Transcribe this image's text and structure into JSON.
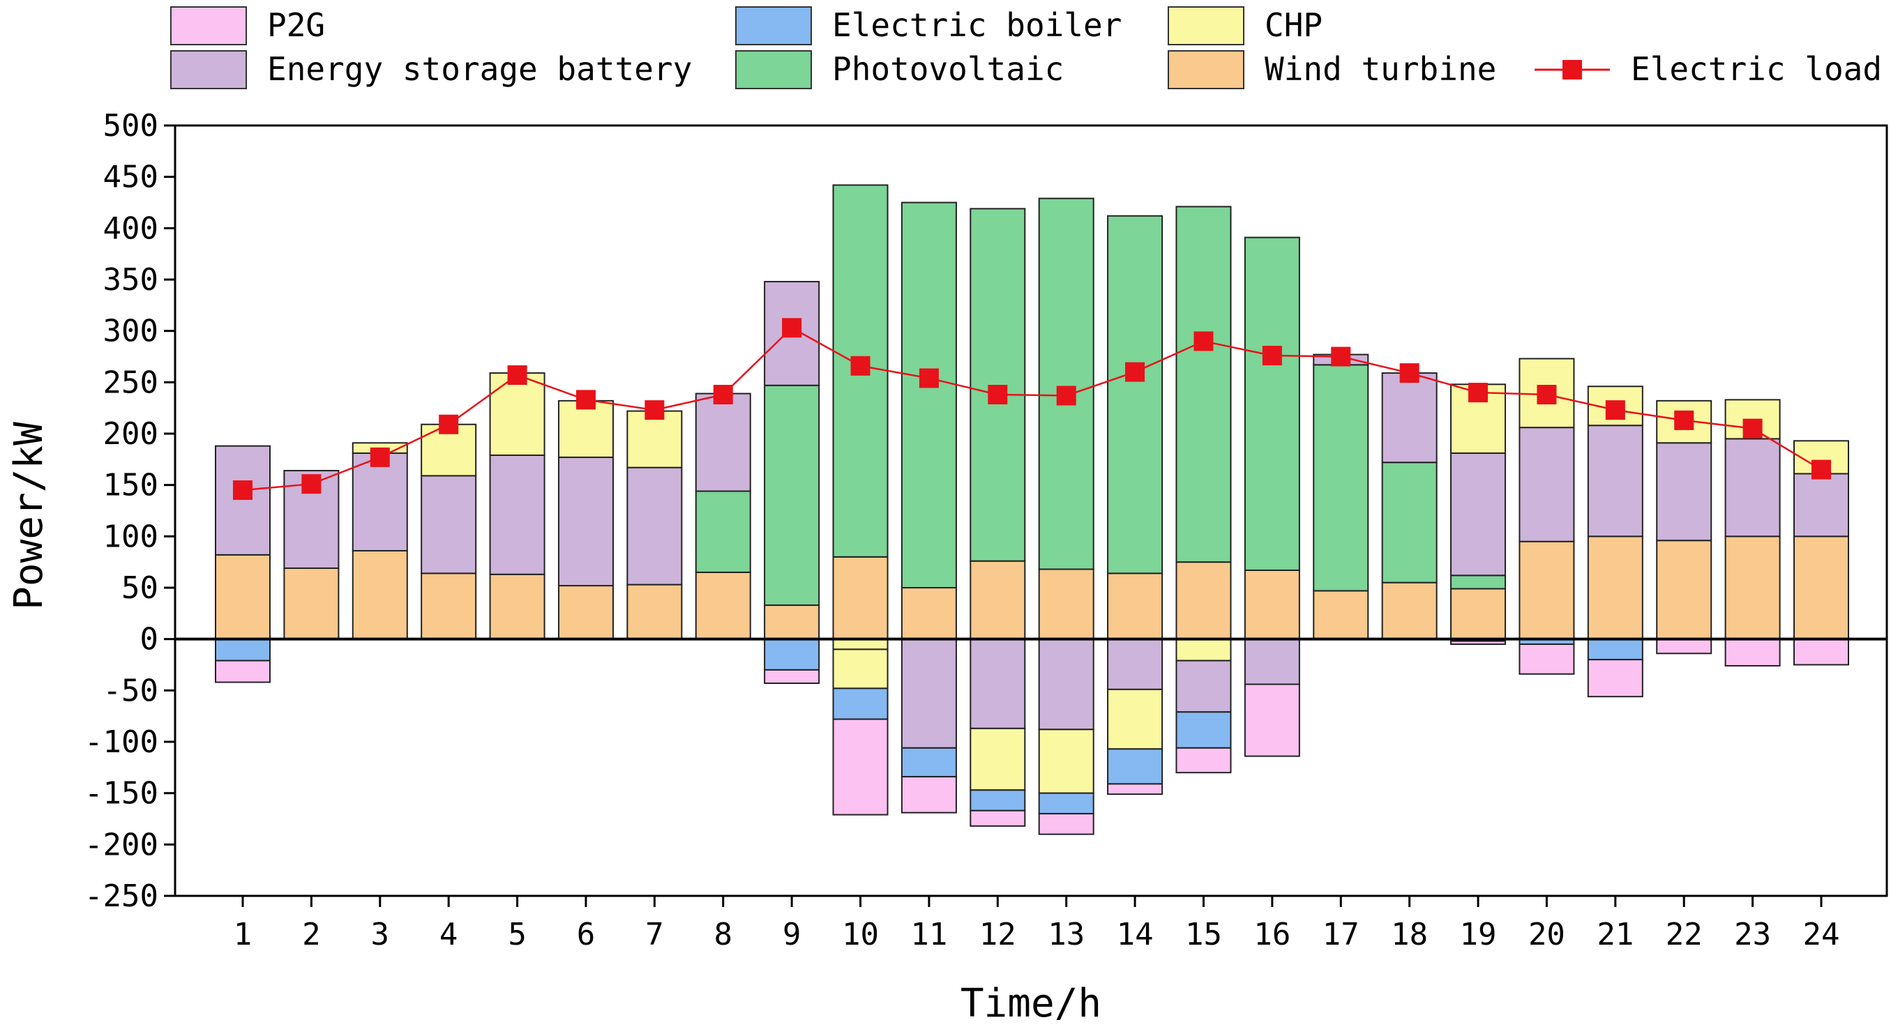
{
  "chart_data": {
    "type": "bar",
    "stacked": true,
    "title": "",
    "xlabel": "Time/h",
    "ylabel": "Power/kW",
    "ylim": [
      -250,
      500
    ],
    "yticks": [
      500,
      450,
      400,
      350,
      300,
      250,
      200,
      150,
      100,
      50,
      0,
      -50,
      -100,
      -150,
      -200,
      -250
    ],
    "categories": [
      "1",
      "2",
      "3",
      "4",
      "5",
      "6",
      "7",
      "8",
      "9",
      "10",
      "11",
      "12",
      "13",
      "14",
      "15",
      "16",
      "17",
      "18",
      "19",
      "20",
      "21",
      "22",
      "23",
      "24"
    ],
    "positive_series": [
      {
        "name": "Wind turbine",
        "color": "#F9C98D",
        "values": [
          82,
          69,
          86,
          64,
          63,
          52,
          53,
          65,
          33,
          80,
          50,
          76,
          68,
          64,
          75,
          67,
          47,
          55,
          49,
          95,
          100,
          96,
          100,
          100
        ]
      },
      {
        "name": "Photovoltaic",
        "color": "#7DD597",
        "values": [
          0,
          0,
          0,
          0,
          0,
          0,
          0,
          79,
          214,
          362,
          375,
          343,
          361,
          348,
          346,
          324,
          220,
          117,
          13,
          0,
          0,
          0,
          0,
          0
        ]
      },
      {
        "name": "Energy storage battery",
        "color": "#CDB4DA",
        "values": [
          106,
          95,
          95,
          95,
          116,
          125,
          114,
          95,
          101,
          0,
          0,
          0,
          0,
          0,
          0,
          0,
          10,
          87,
          119,
          111,
          108,
          95,
          95,
          61
        ]
      },
      {
        "name": "CHP",
        "color": "#FBF8A2",
        "values": [
          0,
          0,
          10,
          50,
          80,
          55,
          55,
          0,
          0,
          0,
          0,
          0,
          0,
          0,
          0,
          0,
          0,
          0,
          67,
          67,
          38,
          41,
          38,
          32
        ]
      }
    ],
    "negative_series": [
      {
        "name": "CHP",
        "color": "#FBF8A2",
        "values": [
          0,
          0,
          0,
          0,
          0,
          0,
          0,
          0,
          0,
          -10,
          0,
          0,
          0,
          0,
          -21,
          0,
          0,
          0,
          0,
          0,
          0,
          0,
          0,
          0
        ]
      },
      {
        "name": "Energy storage battery",
        "color": "#CDB4DA",
        "values": [
          0,
          0,
          0,
          0,
          0,
          0,
          0,
          0,
          0,
          0,
          -106,
          -87,
          -88,
          -49,
          -50,
          -44,
          0,
          0,
          0,
          0,
          0,
          0,
          0,
          0
        ]
      },
      {
        "name": "CHP",
        "color": "#FBF8A2",
        "values": [
          0,
          0,
          0,
          0,
          0,
          0,
          0,
          0,
          0,
          -38,
          0,
          -60,
          -62,
          -58,
          0,
          0,
          0,
          0,
          0,
          0,
          0,
          0,
          0,
          0
        ]
      },
      {
        "name": "Electric boiler",
        "color": "#86B8F2",
        "values": [
          -21,
          0,
          0,
          0,
          0,
          0,
          0,
          0,
          -30,
          -30,
          -28,
          -20,
          -20,
          -34,
          -35,
          0,
          0,
          0,
          -2,
          -5,
          -20,
          0,
          0,
          0
        ]
      },
      {
        "name": "P2G",
        "color": "#FBC2F2",
        "values": [
          -21,
          0,
          0,
          0,
          0,
          0,
          0,
          0,
          -13,
          -93,
          -35,
          -15,
          -20,
          -10,
          -24,
          -70,
          0,
          0,
          -3,
          -29,
          -36,
          -14,
          -26,
          -25
        ]
      }
    ],
    "line_series": {
      "name": "Electric load",
      "color": "#E8121A",
      "values": [
        145,
        151,
        177,
        209,
        257,
        233,
        223,
        238,
        303,
        266,
        254,
        238,
        237,
        260,
        290,
        276,
        275,
        259,
        240,
        238,
        223,
        213,
        205,
        165
      ]
    },
    "legend": {
      "placement": "top",
      "entries": [
        {
          "label": "P2G",
          "color": "#FBC2F2",
          "kind": "box"
        },
        {
          "label": "Electric boiler",
          "color": "#86B8F2",
          "kind": "box"
        },
        {
          "label": "CHP",
          "color": "#FBF8A2",
          "kind": "box"
        },
        {
          "label": "Energy storage battery",
          "color": "#CDB4DA",
          "kind": "box"
        },
        {
          "label": "Photovoltaic",
          "color": "#7DD597",
          "kind": "box"
        },
        {
          "label": "Wind turbine",
          "color": "#F9C98D",
          "kind": "box"
        },
        {
          "label": "Electric load",
          "color": "#E8121A",
          "kind": "line-marker"
        }
      ]
    }
  }
}
